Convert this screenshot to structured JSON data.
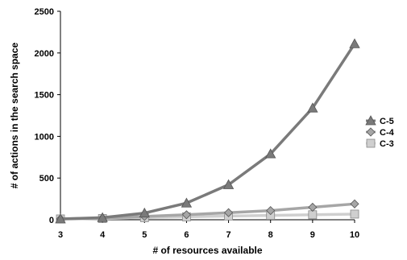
{
  "chart_data": {
    "type": "line",
    "x": [
      3,
      4,
      5,
      6,
      7,
      8,
      9,
      10
    ],
    "xlabel": "# of resources available",
    "ylabel": "# of actions in the search space",
    "ylim": [
      0,
      2500
    ],
    "yticks": [
      0,
      500,
      1000,
      1500,
      2000,
      2500
    ],
    "grid": false,
    "legend_position": "right",
    "series": [
      {
        "name": "C-5",
        "marker": "triangle",
        "color": "#7a7a7a",
        "values": [
          10,
          25,
          80,
          200,
          420,
          790,
          1340,
          2110
        ]
      },
      {
        "name": "C-4",
        "marker": "diamond",
        "color": "#a6a6a6",
        "values": [
          10,
          20,
          40,
          60,
          85,
          110,
          150,
          190
        ]
      },
      {
        "name": "C-3",
        "marker": "square",
        "color": "#cfcfcf",
        "values": [
          10,
          15,
          25,
          35,
          45,
          52,
          60,
          68
        ]
      }
    ]
  }
}
